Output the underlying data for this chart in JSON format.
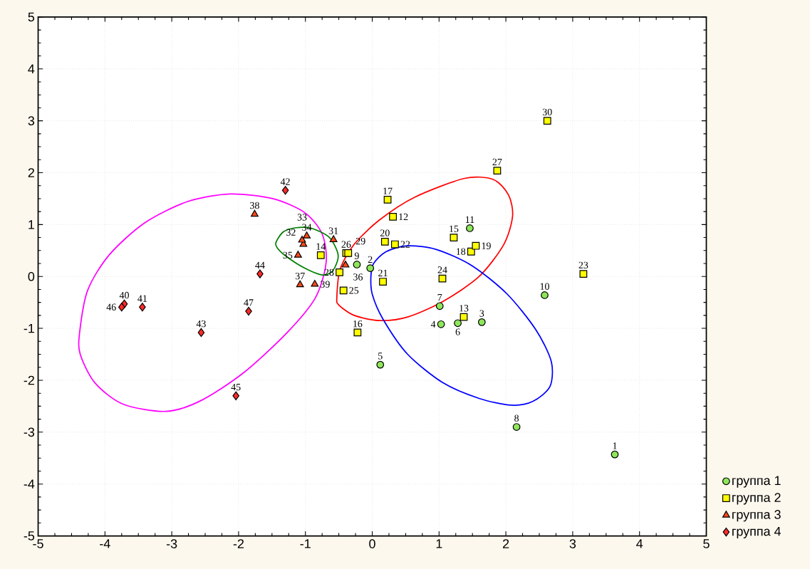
{
  "chart_data": {
    "type": "scatter",
    "xlim": [
      -5,
      5
    ],
    "ylim": [
      -5,
      5
    ],
    "xticks": [
      -5,
      -4,
      -3,
      -2,
      -1,
      0,
      1,
      2,
      3,
      4,
      5
    ],
    "yticks": [
      -5,
      -4,
      -3,
      -2,
      -1,
      0,
      1,
      2,
      3,
      4,
      5
    ],
    "grid": true,
    "legend": "bottom right",
    "series": [
      {
        "name": "группа 1",
        "color": "#8ee65a",
        "marker": "circle",
        "x": [
          3.63,
          -0.03,
          1.64,
          1.03,
          0.12,
          1.28,
          1.01,
          2.16,
          -0.23,
          2.58,
          1.46
        ],
        "values": [
          -3.43,
          0.16,
          -0.88,
          -0.92,
          -1.7,
          -0.9,
          -0.57,
          -2.9,
          0.23,
          -0.36,
          0.93
        ]
      },
      {
        "name": "группа 2",
        "color": "#ffff00",
        "marker": "square",
        "x": [
          0.31,
          1.37,
          -0.77,
          1.22,
          -0.22,
          0.23,
          1.48,
          1.55,
          0.19,
          0.16,
          0.34,
          3.16,
          1.05,
          -0.43,
          -0.39,
          1.87,
          -0.49,
          -0.36,
          2.62
        ],
        "values": [
          1.15,
          -0.78,
          0.41,
          0.75,
          -1.08,
          1.48,
          0.48,
          0.59,
          0.67,
          -0.1,
          0.62,
          0.05,
          -0.04,
          -0.27,
          0.45,
          2.04,
          0.08,
          0.45,
          3.0
        ]
      },
      {
        "name": "группа 3",
        "color": "#ff4a1a",
        "marker": "triangle",
        "x": [
          -0.58,
          -1.03,
          -1.05,
          -0.98,
          -1.11,
          -0.4,
          -1.08,
          -1.76,
          -0.86
        ],
        "values": [
          0.71,
          0.62,
          0.7,
          0.78,
          0.41,
          0.22,
          -0.16,
          1.2,
          -0.15
        ]
      },
      {
        "name": "группа 4",
        "color": "#ff2a2a",
        "marker": "diamond",
        "x": [
          -3.71,
          -3.44,
          -1.3,
          -2.56,
          -1.68,
          -2.04,
          -3.75,
          -1.85
        ],
        "values": [
          -0.53,
          -0.59,
          1.66,
          -1.08,
          0.05,
          -2.3,
          -0.59,
          -0.67
        ]
      }
    ],
    "annotations": [
      {
        "text": "1",
        "x": 3.63,
        "y": -3.43
      },
      {
        "text": "2",
        "x": -0.03,
        "y": 0.16
      },
      {
        "text": "3",
        "x": 1.64,
        "y": -0.88
      },
      {
        "text": "4",
        "x": 1.03,
        "y": -0.92
      },
      {
        "text": "5",
        "x": 0.12,
        "y": -1.7
      },
      {
        "text": "6",
        "x": 1.28,
        "y": -0.9
      },
      {
        "text": "7",
        "x": 1.01,
        "y": -0.57
      },
      {
        "text": "8",
        "x": 2.16,
        "y": -2.9
      },
      {
        "text": "9",
        "x": -0.23,
        "y": 0.23
      },
      {
        "text": "10",
        "x": 2.58,
        "y": -0.36
      },
      {
        "text": "11",
        "x": 1.46,
        "y": 0.93
      },
      {
        "text": "12",
        "x": 0.31,
        "y": 1.15
      },
      {
        "text": "13",
        "x": 1.37,
        "y": -0.78
      },
      {
        "text": "14",
        "x": -0.77,
        "y": 0.41
      },
      {
        "text": "15",
        "x": 1.22,
        "y": 0.75
      },
      {
        "text": "16",
        "x": -0.22,
        "y": -1.08
      },
      {
        "text": "17",
        "x": 0.23,
        "y": 1.48
      },
      {
        "text": "18",
        "x": 1.48,
        "y": 0.48
      },
      {
        "text": "19",
        "x": 1.55,
        "y": 0.59
      },
      {
        "text": "20",
        "x": 0.19,
        "y": 0.67
      },
      {
        "text": "21",
        "x": 0.16,
        "y": -0.1
      },
      {
        "text": "22",
        "x": 0.34,
        "y": 0.62
      },
      {
        "text": "23",
        "x": 3.16,
        "y": 0.05
      },
      {
        "text": "24",
        "x": 1.05,
        "y": -0.04
      },
      {
        "text": "25",
        "x": -0.43,
        "y": -0.27
      },
      {
        "text": "26",
        "x": -0.39,
        "y": 0.45
      },
      {
        "text": "27",
        "x": 1.87,
        "y": 2.04
      },
      {
        "text": "28",
        "x": -0.49,
        "y": 0.08
      },
      {
        "text": "29",
        "x": -0.36,
        "y": 0.45
      },
      {
        "text": "30",
        "x": 2.62,
        "y": 3.0
      },
      {
        "text": "31",
        "x": -0.58,
        "y": 0.71
      },
      {
        "text": "32",
        "x": -1.03,
        "y": 0.62
      },
      {
        "text": "33",
        "x": -1.05,
        "y": 0.7
      },
      {
        "text": "34",
        "x": -0.98,
        "y": 0.78
      },
      {
        "text": "35",
        "x": -1.11,
        "y": 0.41
      },
      {
        "text": "36",
        "x": -0.4,
        "y": 0.22
      },
      {
        "text": "37",
        "x": -1.08,
        "y": -0.16
      },
      {
        "text": "38",
        "x": -1.76,
        "y": 1.2
      },
      {
        "text": "39",
        "x": -0.86,
        "y": -0.15
      },
      {
        "text": "40",
        "x": -3.71,
        "y": -0.53
      },
      {
        "text": "41",
        "x": -3.44,
        "y": -0.59
      },
      {
        "text": "42",
        "x": -1.3,
        "y": 1.66
      },
      {
        "text": "43",
        "x": -2.56,
        "y": -1.08
      },
      {
        "text": "44",
        "x": -1.68,
        "y": 0.05
      },
      {
        "text": "45",
        "x": -2.04,
        "y": -2.3
      },
      {
        "text": "46",
        "x": -3.75,
        "y": -0.59
      },
      {
        "text": "47",
        "x": -1.85,
        "y": -0.67
      }
    ]
  }
}
